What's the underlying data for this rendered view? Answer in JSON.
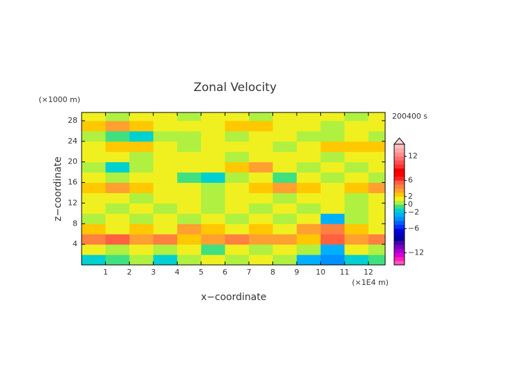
{
  "chart_data": {
    "type": "contour",
    "title": "Zonal Velocity",
    "x_label": "x−coordinate",
    "y_label": "z−coordinate",
    "x_unit": "(×1E4 m)",
    "y_unit": "(×1000 m)",
    "time_label": "200400 s",
    "xlim": [
      0,
      12.7
    ],
    "ylim": [
      0,
      29.6
    ],
    "xticks": [
      1,
      2,
      3,
      4,
      5,
      6,
      7,
      8,
      9,
      10,
      11,
      12
    ],
    "yticks": [
      4,
      8,
      12,
      16,
      20,
      24,
      28
    ],
    "field": {
      "x": [
        0.5,
        1.5,
        2.5,
        3.5,
        4.5,
        5.5,
        6.5,
        7.5,
        8.5,
        9.5,
        10.5,
        11.5,
        12.5
      ],
      "z": [
        1,
        3,
        5,
        7,
        9,
        11,
        13,
        15,
        17,
        19,
        21,
        23,
        25,
        27,
        29
      ],
      "values": [
        [
          -1.5,
          -0.5,
          0.5,
          -1.5,
          0.5,
          1.5,
          0.5,
          1.5,
          0.5,
          -2.5,
          -3.5,
          -1.5,
          -0.5
        ],
        [
          1.5,
          0.5,
          1.5,
          0.5,
          1.5,
          -0.5,
          1.5,
          0.5,
          1.5,
          0.5,
          -2.5,
          1.5,
          0.5
        ],
        [
          4.5,
          5.5,
          3.5,
          4.5,
          2.5,
          3.5,
          4.5,
          3.5,
          3.5,
          2.5,
          5.5,
          3.5,
          4.5
        ],
        [
          2.5,
          1.5,
          2.5,
          1.5,
          3.5,
          2.5,
          1.5,
          2.5,
          1.5,
          3.5,
          4.5,
          2.5,
          1.5
        ],
        [
          0.5,
          1.5,
          0.5,
          1.5,
          0.5,
          1.5,
          0.5,
          1.5,
          0.5,
          1.5,
          -2.5,
          0.5,
          1.5
        ],
        [
          1.5,
          0.5,
          1.5,
          0.5,
          1.5,
          0.5,
          1.5,
          0.5,
          1.5,
          0.5,
          1.5,
          0.5,
          1.5
        ],
        [
          1.5,
          1.5,
          0.5,
          1.5,
          1.5,
          0.5,
          1.5,
          1.5,
          0.5,
          1.5,
          1.5,
          0.5,
          1.5
        ],
        [
          2.5,
          3.5,
          2.5,
          1.5,
          1.5,
          0.5,
          1.5,
          2.5,
          3.5,
          2.5,
          1.5,
          2.5,
          3.5
        ],
        [
          1.5,
          0.5,
          1.5,
          1.5,
          -0.5,
          -1.5,
          0.5,
          1.5,
          -0.5,
          1.5,
          0.5,
          1.5,
          0.5
        ],
        [
          0.5,
          -1.5,
          0.5,
          1.5,
          1.5,
          1.5,
          2.5,
          3.5,
          1.5,
          0.5,
          1.5,
          0.5,
          1.5
        ],
        [
          1.5,
          1.5,
          0.5,
          1.5,
          1.5,
          1.5,
          0.5,
          1.5,
          1.5,
          1.5,
          0.5,
          1.5,
          1.5
        ],
        [
          1.5,
          2.5,
          2.5,
          1.5,
          0.5,
          1.5,
          1.5,
          1.5,
          0.5,
          1.5,
          2.5,
          2.5,
          2.5
        ],
        [
          0.5,
          -0.5,
          -1.5,
          0.5,
          0.5,
          1.5,
          0.5,
          1.5,
          1.5,
          0.5,
          0.5,
          1.5,
          0.5
        ],
        [
          2.5,
          3.5,
          2.5,
          1.5,
          1.5,
          1.5,
          2.5,
          2.5,
          1.5,
          1.5,
          0.5,
          1.5,
          1.5
        ],
        [
          1.5,
          0.5,
          1.5,
          1.5,
          0.5,
          1.5,
          1.5,
          0.5,
          1.5,
          1.5,
          1.5,
          0.5,
          1.5
        ]
      ]
    },
    "levels": [
      -15,
      -14,
      -13,
      -12,
      -11,
      -10,
      -9,
      -8,
      -7,
      -6,
      -5,
      -4,
      -3,
      -2,
      -1,
      0,
      1,
      2,
      3,
      4,
      5,
      6,
      7,
      8,
      9,
      10,
      11,
      12,
      13,
      14,
      15
    ],
    "colors": [
      "#ff50c8",
      "#ff20b8",
      "#d800d8",
      "#a800d0",
      "#7800c0",
      "#4800b0",
      "#0000a0",
      "#0000c0",
      "#0000e0",
      "#0030ff",
      "#0060ff",
      "#0090ff",
      "#00b0ff",
      "#00d0d0",
      "#40e080",
      "#b0f040",
      "#f0f020",
      "#ffc800",
      "#ffa030",
      "#ff8040",
      "#ff6040",
      "#ff2020",
      "#ff0000",
      "#f00000",
      "#ff3030",
      "#ff5050",
      "#ff7070",
      "#ff9090",
      "#ffa8a8",
      "#ffc0c0"
    ],
    "extend_color": "#ffd8d8",
    "colorbar_ticks": [
      {
        "value": -12,
        "label": "−12"
      },
      {
        "value": -6,
        "label": "−6"
      },
      {
        "value": -2,
        "label": "−2"
      },
      0,
      2,
      6,
      12
    ]
  }
}
